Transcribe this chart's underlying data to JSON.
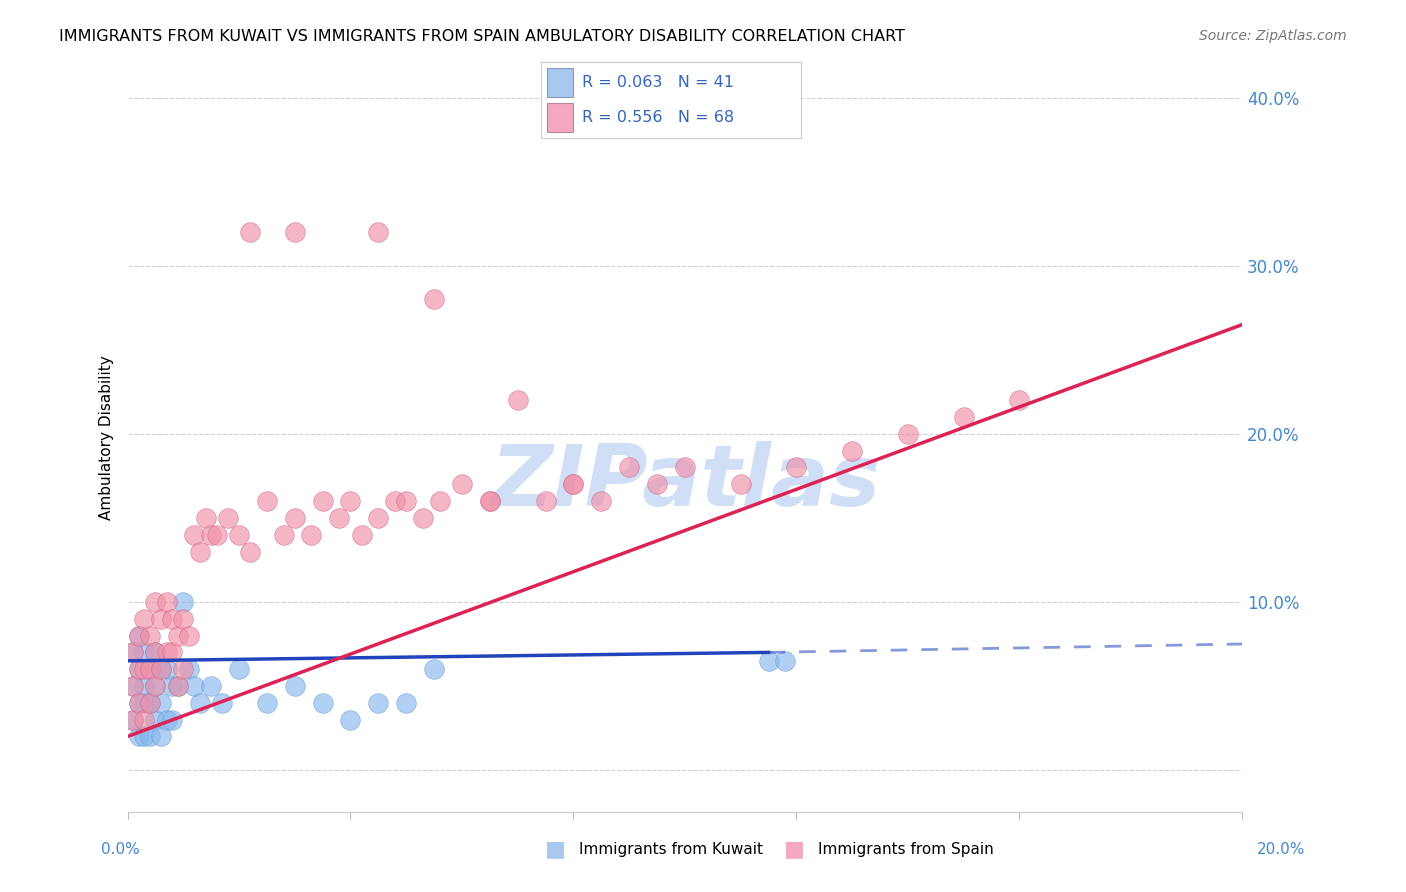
{
  "title": "IMMIGRANTS FROM KUWAIT VS IMMIGRANTS FROM SPAIN AMBULATORY DISABILITY CORRELATION CHART",
  "source": "Source: ZipAtlas.com",
  "ylabel": "Ambulatory Disability",
  "ytick_vals": [
    0.0,
    0.1,
    0.2,
    0.3,
    0.4
  ],
  "ytick_labels": [
    "",
    "10.0%",
    "20.0%",
    "30.0%",
    "40.0%"
  ],
  "xlim": [
    0.0,
    0.2
  ],
  "ylim": [
    -0.025,
    0.42
  ],
  "legend1_label": "R = 0.063   N = 41",
  "legend2_label": "R = 0.556   N = 68",
  "legend_color1": "#a8c8f0",
  "legend_color2": "#f5a8c0",
  "scatter_color_kuwait": "#88b8ee",
  "scatter_color_spain": "#f090a8",
  "line_color_kuwait": "#2244bb",
  "line_color_spain": "#dd2255",
  "watermark": "ZIPatlas",
  "watermark_color": "#d0dff5",
  "kuwait_x": [
    0.001,
    0.001,
    0.001,
    0.002,
    0.002,
    0.002,
    0.002,
    0.003,
    0.003,
    0.003,
    0.003,
    0.004,
    0.004,
    0.004,
    0.005,
    0.005,
    0.005,
    0.006,
    0.006,
    0.006,
    0.007,
    0.007,
    0.008,
    0.008,
    0.009,
    0.01,
    0.011,
    0.012,
    0.013,
    0.015,
    0.017,
    0.02,
    0.025,
    0.03,
    0.035,
    0.04,
    0.045,
    0.05,
    0.055,
    0.115,
    0.118
  ],
  "kuwait_y": [
    0.07,
    0.05,
    0.03,
    0.08,
    0.06,
    0.04,
    0.02,
    0.07,
    0.05,
    0.04,
    0.02,
    0.06,
    0.04,
    0.02,
    0.07,
    0.05,
    0.03,
    0.06,
    0.04,
    0.02,
    0.06,
    0.03,
    0.05,
    0.03,
    0.05,
    0.1,
    0.06,
    0.05,
    0.04,
    0.05,
    0.04,
    0.06,
    0.04,
    0.05,
    0.04,
    0.03,
    0.04,
    0.04,
    0.06,
    0.065,
    0.065
  ],
  "spain_x": [
    0.001,
    0.001,
    0.001,
    0.002,
    0.002,
    0.002,
    0.003,
    0.003,
    0.003,
    0.004,
    0.004,
    0.004,
    0.005,
    0.005,
    0.005,
    0.006,
    0.006,
    0.007,
    0.007,
    0.008,
    0.008,
    0.009,
    0.009,
    0.01,
    0.01,
    0.011,
    0.012,
    0.013,
    0.014,
    0.015,
    0.016,
    0.018,
    0.02,
    0.022,
    0.025,
    0.028,
    0.03,
    0.033,
    0.035,
    0.038,
    0.04,
    0.042,
    0.045,
    0.048,
    0.05,
    0.053,
    0.056,
    0.06,
    0.065,
    0.07,
    0.075,
    0.08,
    0.085,
    0.09,
    0.095,
    0.1,
    0.11,
    0.12,
    0.13,
    0.14,
    0.15,
    0.16,
    0.022,
    0.03,
    0.045,
    0.055,
    0.065,
    0.08
  ],
  "spain_y": [
    0.07,
    0.05,
    0.03,
    0.08,
    0.06,
    0.04,
    0.09,
    0.06,
    0.03,
    0.08,
    0.06,
    0.04,
    0.1,
    0.07,
    0.05,
    0.09,
    0.06,
    0.1,
    0.07,
    0.09,
    0.07,
    0.08,
    0.05,
    0.09,
    0.06,
    0.08,
    0.14,
    0.13,
    0.15,
    0.14,
    0.14,
    0.15,
    0.14,
    0.13,
    0.16,
    0.14,
    0.15,
    0.14,
    0.16,
    0.15,
    0.16,
    0.14,
    0.15,
    0.16,
    0.16,
    0.15,
    0.16,
    0.17,
    0.16,
    0.22,
    0.16,
    0.17,
    0.16,
    0.18,
    0.17,
    0.18,
    0.17,
    0.18,
    0.19,
    0.2,
    0.21,
    0.22,
    0.32,
    0.32,
    0.32,
    0.28,
    0.16,
    0.17
  ],
  "kw_line_x0": 0.0,
  "kw_line_x_solid_end": 0.115,
  "kw_line_x1": 0.2,
  "kw_line_y0": 0.065,
  "kw_line_y_at_solid_end": 0.07,
  "kw_line_y1": 0.075,
  "sp_line_x0": 0.0,
  "sp_line_x1": 0.2,
  "sp_line_y0": 0.02,
  "sp_line_y1": 0.265
}
